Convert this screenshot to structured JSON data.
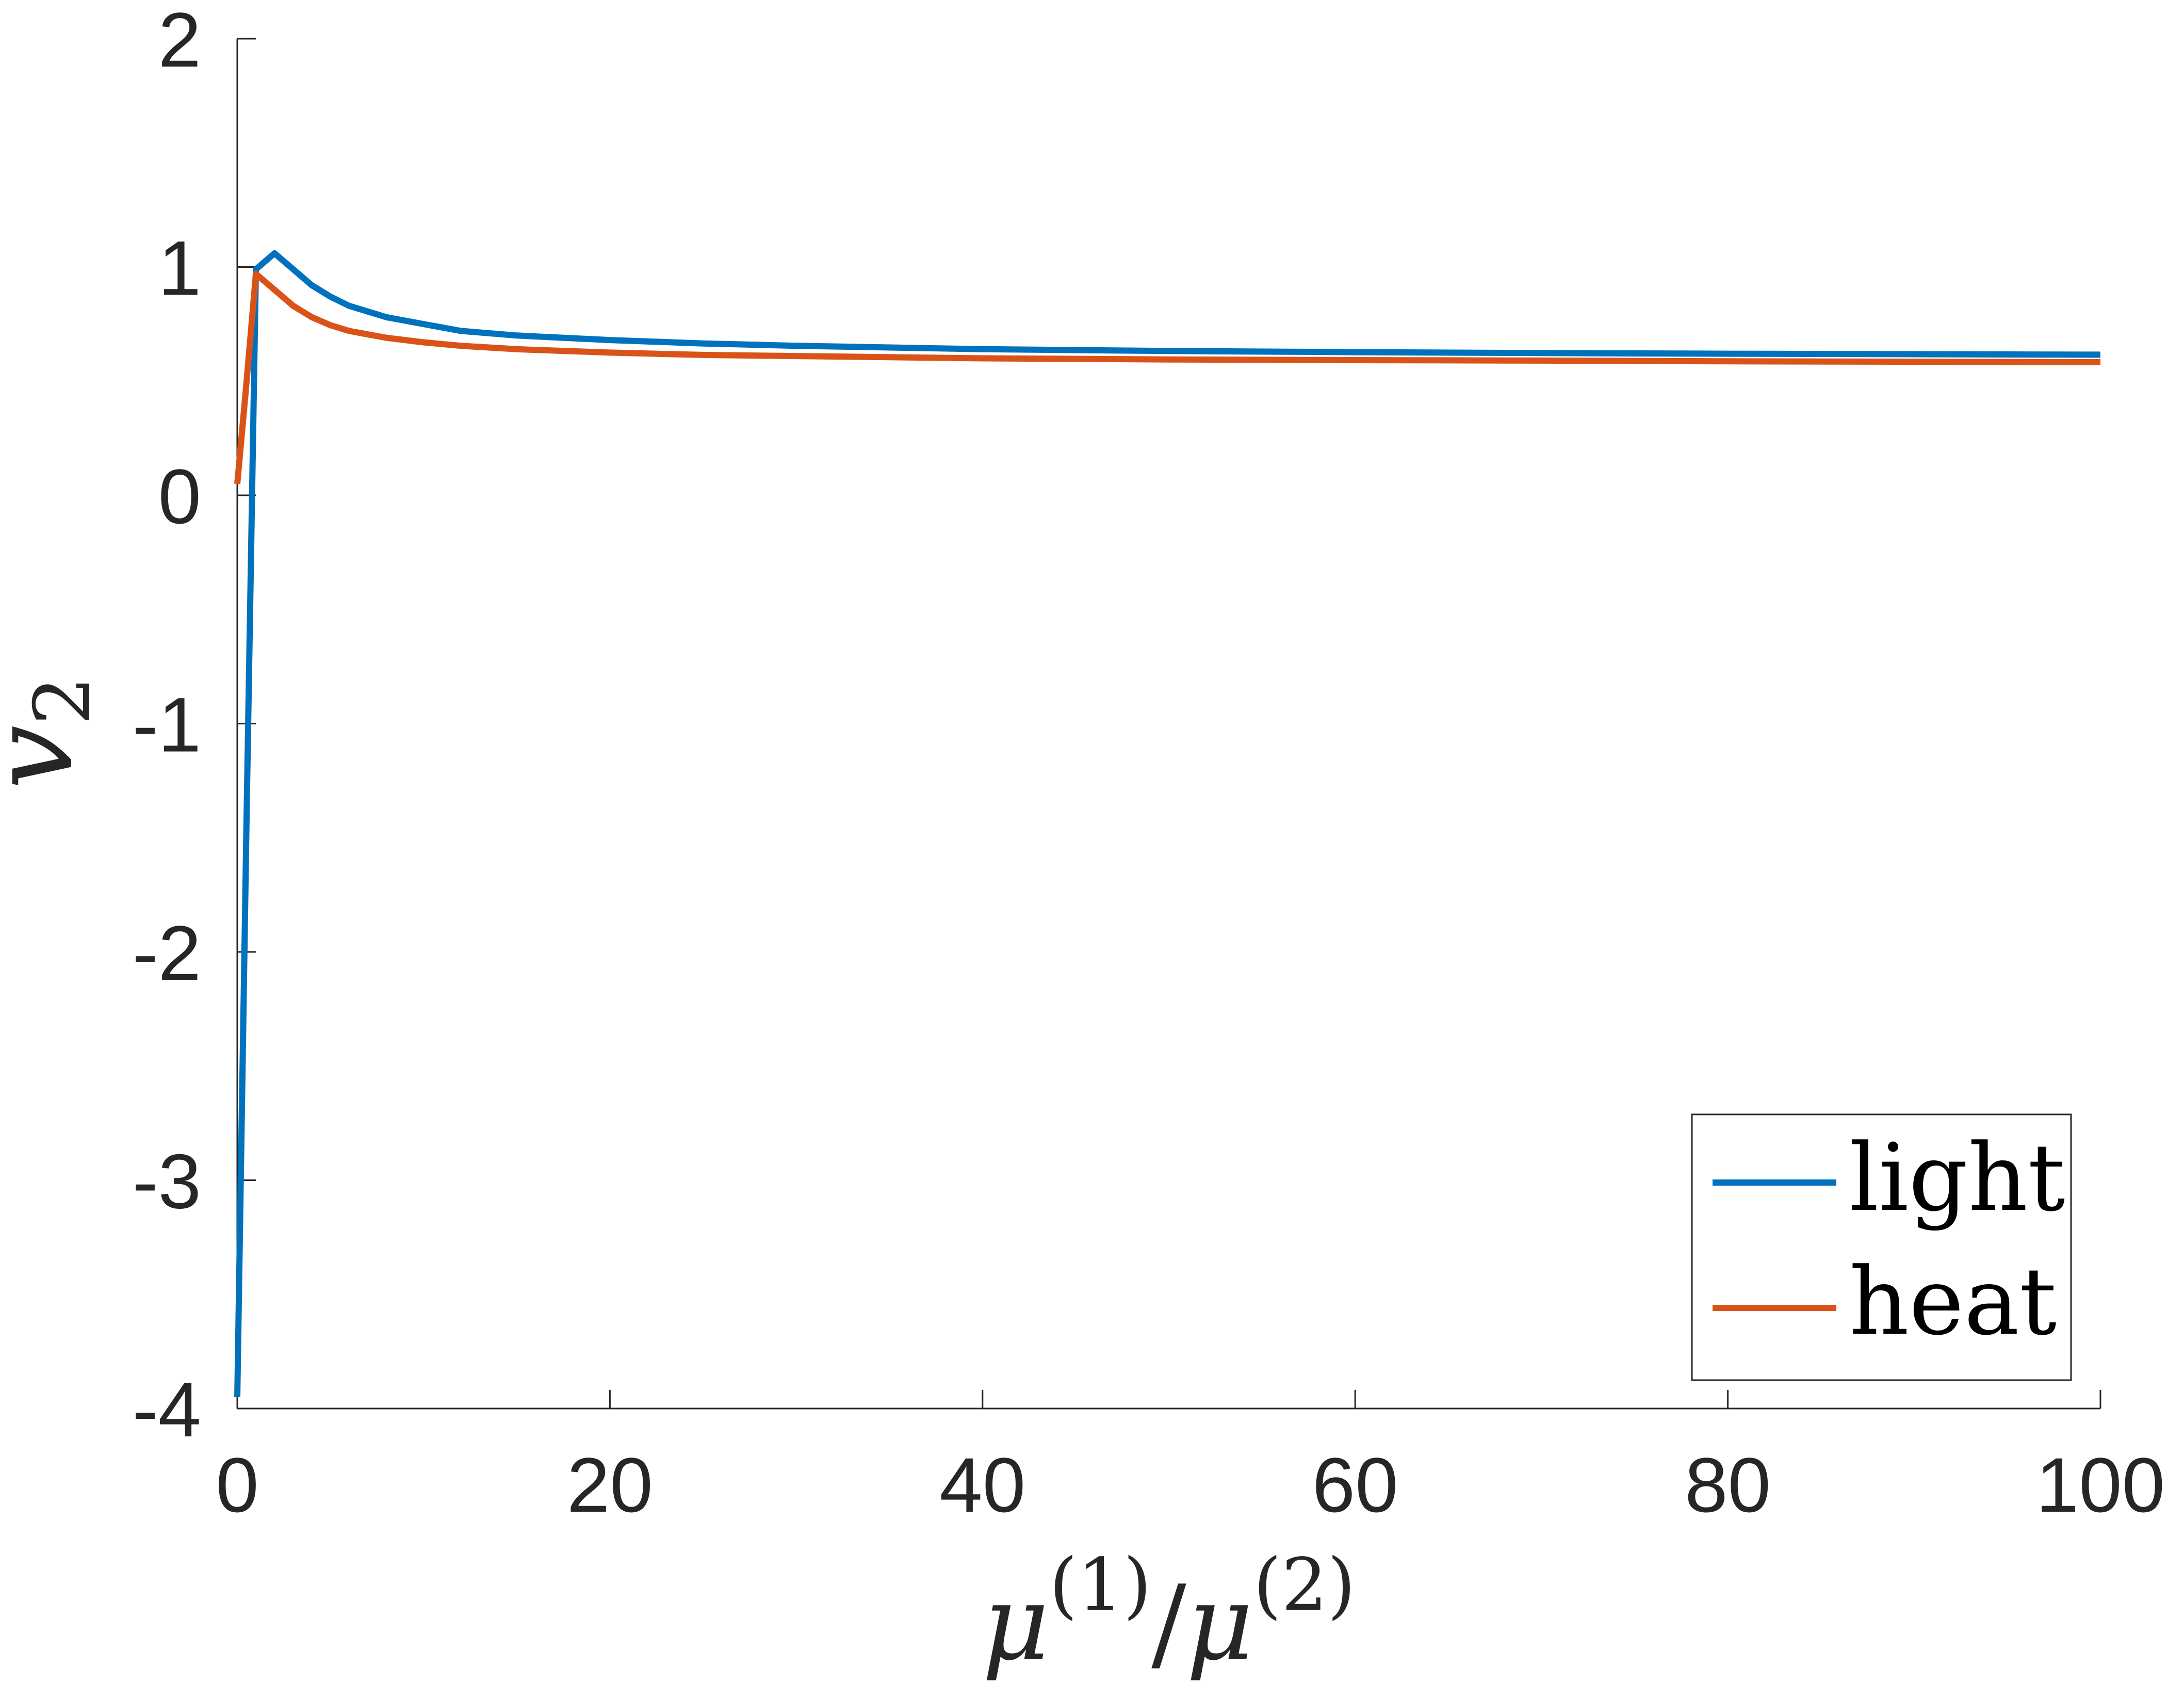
{
  "chart_data": {
    "type": "line",
    "xlabel": {
      "base1": "μ",
      "sup1": "(1)",
      "slash": "/",
      "base2": "μ",
      "sup2": "(2)"
    },
    "ylabel": {
      "base": "v",
      "sub": "2"
    },
    "xlim": [
      0,
      100
    ],
    "ylim": [
      -4,
      2
    ],
    "xticks": [
      0,
      20,
      40,
      60,
      80,
      100
    ],
    "yticks": [
      -4,
      -3,
      -2,
      -1,
      0,
      1,
      2
    ],
    "xtick_labels": [
      "0",
      "20",
      "40",
      "60",
      "80",
      "100"
    ],
    "ytick_labels": [
      "-4",
      "-3",
      "-2",
      "-1",
      "0",
      "1",
      "2"
    ],
    "grid": false,
    "legend_position": "bottom-right",
    "series": [
      {
        "name": "light",
        "color": "#0072BD",
        "x": [
          0,
          0.5,
          1,
          2,
          3,
          4,
          5,
          6,
          8,
          10,
          12,
          15,
          20,
          25,
          30,
          40,
          50,
          60,
          70,
          80,
          90,
          100
        ],
        "y": [
          -3.95,
          -1.4,
          0.99,
          1.06,
          0.99,
          0.92,
          0.87,
          0.83,
          0.78,
          0.75,
          0.72,
          0.7,
          0.68,
          0.665,
          0.655,
          0.64,
          0.632,
          0.627,
          0.623,
          0.62,
          0.618,
          0.616
        ]
      },
      {
        "name": "heat",
        "color": "#D95319",
        "x": [
          0,
          0.5,
          1,
          2,
          3,
          4,
          5,
          6,
          8,
          10,
          12,
          15,
          20,
          25,
          30,
          40,
          50,
          60,
          70,
          80,
          90,
          100
        ],
        "y": [
          0.05,
          0.5,
          0.97,
          0.9,
          0.83,
          0.78,
          0.745,
          0.72,
          0.69,
          0.67,
          0.655,
          0.64,
          0.625,
          0.615,
          0.61,
          0.6,
          0.595,
          0.592,
          0.59,
          0.587,
          0.585,
          0.583
        ]
      }
    ]
  }
}
